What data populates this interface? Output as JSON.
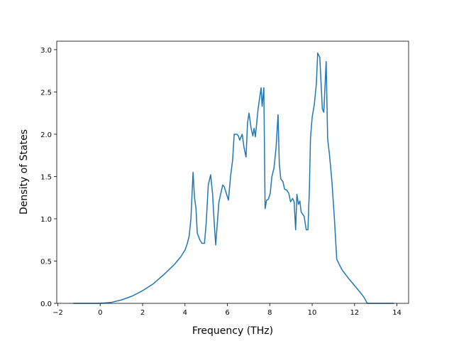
{
  "chart_data": {
    "type": "line",
    "xlabel": "Frequency (THz)",
    "ylabel": "Density of States",
    "color": "#1f77b4",
    "xlim": [
      -2.05,
      14.55
    ],
    "ylim": [
      0,
      3.1
    ],
    "xticks": [
      {
        "value": -2,
        "label": "−2"
      },
      0,
      2,
      4,
      6,
      8,
      10,
      12,
      14
    ],
    "yticks": [
      {
        "value": 0,
        "label": "0.0"
      },
      0.5,
      {
        "value": 1,
        "label": "1.0"
      },
      1.5,
      {
        "value": 2,
        "label": "2.0"
      },
      2.5,
      {
        "value": 3,
        "label": "3.0"
      }
    ],
    "x": [
      -1.27,
      0,
      0.5,
      1,
      1.5,
      2,
      2.5,
      3,
      3.5,
      3.8,
      4.0,
      4.1,
      4.2,
      4.28,
      4.38,
      4.45,
      4.52,
      4.58,
      4.7,
      4.8,
      4.92,
      5.0,
      5.1,
      5.21,
      5.3,
      5.38,
      5.45,
      5.6,
      5.78,
      5.85,
      5.95,
      6.05,
      6.15,
      6.25,
      6.32,
      6.45,
      6.52,
      6.58,
      6.7,
      6.78,
      6.88,
      6.95,
      7.02,
      7.12,
      7.2,
      7.26,
      7.32,
      7.45,
      7.59,
      7.64,
      7.72,
      7.78,
      7.85,
      7.93,
      8.02,
      8.1,
      8.2,
      8.3,
      8.39,
      8.45,
      8.52,
      8.62,
      8.7,
      8.8,
      8.9,
      8.98,
      9.08,
      9.15,
      9.22,
      9.28,
      9.35,
      9.42,
      9.48,
      9.62,
      9.72,
      9.8,
      9.87,
      9.92,
      10.0,
      10.1,
      10.2,
      10.26,
      10.36,
      10.48,
      10.55,
      10.66,
      10.73,
      10.82,
      10.93,
      11.05,
      11.16,
      11.4,
      11.7,
      12.0,
      12.3,
      12.45,
      12.6,
      13.86
    ],
    "values": [
      0,
      0,
      0.01,
      0.04,
      0.085,
      0.15,
      0.23,
      0.34,
      0.46,
      0.55,
      0.63,
      0.7,
      0.8,
      1.0,
      1.55,
      1.25,
      1.12,
      0.83,
      0.75,
      0.71,
      0.71,
      0.95,
      1.4,
      1.52,
      1.3,
      0.95,
      0.69,
      1.2,
      1.4,
      1.38,
      1.3,
      1.22,
      1.5,
      1.7,
      2.0,
      2.0,
      1.98,
      1.93,
      2.0,
      1.85,
      1.73,
      2.13,
      2.25,
      2.07,
      1.98,
      2.07,
      1.97,
      2.3,
      2.55,
      2.33,
      2.55,
      1.12,
      1.22,
      1.23,
      1.3,
      1.5,
      1.6,
      1.85,
      2.23,
      1.65,
      1.47,
      1.44,
      1.35,
      1.34,
      1.3,
      1.2,
      1.24,
      1.2,
      0.87,
      1.29,
      1.17,
      1.21,
      1.08,
      1.03,
      0.87,
      0.87,
      1.35,
      1.95,
      2.2,
      2.35,
      2.6,
      2.96,
      2.91,
      2.3,
      2.26,
      2.86,
      1.95,
      1.75,
      1.45,
      1.0,
      0.52,
      0.4,
      0.3,
      0.21,
      0.12,
      0.07,
      0,
      0
    ]
  }
}
